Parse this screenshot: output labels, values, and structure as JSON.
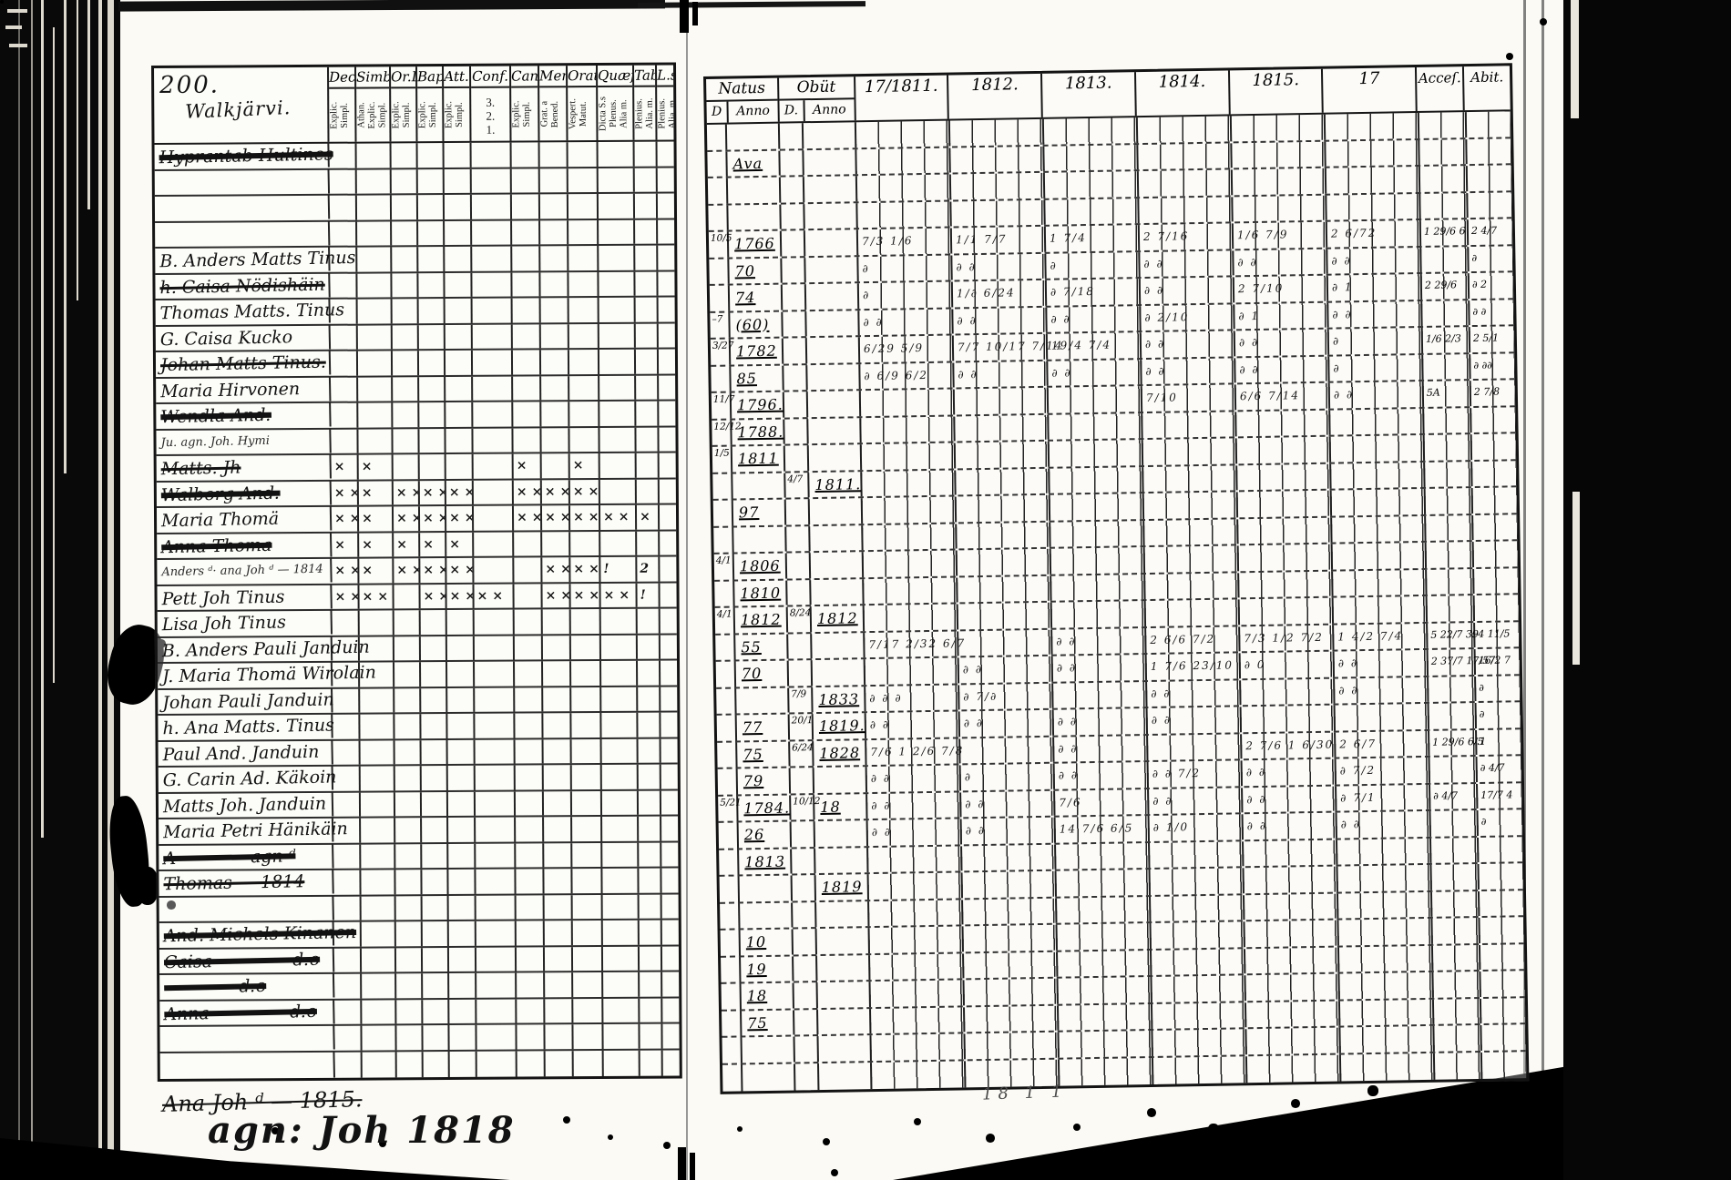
{
  "left": {
    "page_number": "200.",
    "parish": "Walkjärvi.",
    "columns": [
      {
        "label": "Dec.",
        "sub": "Explic.\nSimpl."
      },
      {
        "label": "Simb.",
        "sub": "Athan.\nExplic.\nSimpl."
      },
      {
        "label": "Or.D",
        "sub": "Explic.\nSimpl."
      },
      {
        "label": "Bap:",
        "sub": "Explic.\nSimpl."
      },
      {
        "label": "Att.",
        "sub": "Explic.\nSimpl."
      },
      {
        "label": "Conf.",
        "sub": "3.\n2.\n1."
      },
      {
        "label": "Can.D",
        "sub": "Explic.\nSimpl."
      },
      {
        "label": "Menſ.",
        "sub": "Grat. a\nBened."
      },
      {
        "label": "Orat",
        "sub": "Vespert.\nMatut."
      },
      {
        "label": "Quæſt",
        "sub": "Dicta S.s\nPlenus.\nAlia m."
      },
      {
        "label": "Taba",
        "sub": "Plenius.\nAlia. m."
      },
      {
        "label": "L.s",
        "sub": "Plenius.\nAlia. m."
      }
    ],
    "rows": [
      {
        "n": "Hyprantab Hultines",
        "st": 2
      },
      {
        "na": "Ava",
        "nst": 1
      },
      {},
      {},
      {
        "n": "B. Anders Matts Tinus",
        "nd": "10/5",
        "na": "1766",
        "y": [
          "7/3 1/6",
          "1/1 7/7",
          "1 7/4",
          "2 7/16",
          "1/6 7/9",
          "2 6/72"
        ],
        "ac": "1 29/6 6",
        "ab": "2 4/7"
      },
      {
        "n": "h. Caisa Nödishäin",
        "st": 1,
        "na": "70",
        "y": [
          "∂",
          "∂ ∂",
          "∂",
          "∂ ∂",
          "∂ ∂",
          "∂ ∂"
        ],
        "ab": "∂"
      },
      {
        "n": "Thomas Matts. Tinus",
        "na": "74",
        "y": [
          "∂",
          "1/∂ 6/24",
          "∂ 7/18",
          "∂ ∂",
          "2 7/10",
          "∂ 1"
        ],
        "ac": "2 29/6",
        "ab": "∂ 2"
      },
      {
        "n": "G. Caisa Kucko",
        "nd": "–7",
        "na": "(60)",
        "y": [
          "∂ ∂",
          "∂ ∂",
          "∂ ∂",
          "∂ 2/10",
          "∂ 1",
          "∂ ∂"
        ],
        "ab": "∂ ∂"
      },
      {
        "n": "Johan Matts Tinus.",
        "st": 1,
        "nd": "3/27",
        "na": "1782",
        "y": [
          "6/29 5/9",
          "7/7 10/17 7/14",
          "19/4 7/4",
          "∂ ∂",
          "∂ ∂",
          "∂"
        ],
        "ac": "1/6 2/3",
        "ab": "2 5/1"
      },
      {
        "n": "Maria Hirvonen",
        "na": "85",
        "y": [
          "∂ 6/9 6/2",
          "∂ ∂",
          "∂ ∂",
          "∂ ∂",
          "∂ ∂",
          "∂"
        ],
        "ab": "∂ ∂∂"
      },
      {
        "n": "Wendla And:",
        "st": 2,
        "nd": "11/7",
        "na": "1796.",
        "y": [
          "",
          "",
          "",
          "7/10",
          "6/6 7/14",
          "∂ ∂"
        ],
        "ac": "5A",
        "ab": "2 7/8"
      },
      {
        "n": "Ju. agn. Joh. Hymi",
        "sm": 1,
        "nd": "12/12",
        "na": "1788."
      },
      {
        "n": "Matts. Jh",
        "st": 1,
        "nd": "1/5",
        "na": "1811",
        "m": [
          "×",
          "×",
          "",
          "",
          "",
          "",
          "×",
          "",
          "×",
          "",
          "",
          ""
        ]
      },
      {
        "n": "Walborg And:",
        "st": 2,
        "od": "4/7",
        "oa": "1811.",
        "m": [
          "××",
          "×",
          "××",
          "××",
          "××",
          "",
          "××",
          "××",
          "××",
          "",
          "",
          ""
        ]
      },
      {
        "n": "Maria Thomä",
        "na": "97",
        "m": [
          "××",
          "×",
          "××",
          "××",
          "××",
          "",
          "××",
          "××",
          "×××",
          "××",
          "× ×",
          ""
        ]
      },
      {
        "n": "Anna Thoma",
        "st": 2,
        "m": [
          "×",
          "×",
          "×",
          "×",
          "×",
          "",
          "",
          "",
          "",
          "",
          "",
          ""
        ]
      },
      {
        "n": "Anders ᵈ· ana Joh ᵈ — 1814",
        "sm": 1,
        "nd": "4/1",
        "na": "1806",
        "m": [
          "××",
          "×",
          "××",
          "××",
          "××",
          "",
          "",
          "××",
          "×× ×",
          "!",
          "2 /0",
          ""
        ]
      },
      {
        "n": "Pett Joh Tinus",
        "na": "1810",
        "m": [
          "××",
          "××",
          "",
          "××",
          "××",
          "××",
          "",
          "××",
          "××",
          "××",
          "!",
          ""
        ]
      },
      {
        "n": "Lisa Joh Tinus",
        "nd": "4/1",
        "na": "1812",
        "od": "8/24",
        "oa": "1812"
      },
      {
        "n": "B. Anders Pauli Janduin",
        "na": "55",
        "y": [
          "7/17 2/32 6/7",
          "",
          "∂ ∂",
          "2 6/6 7/2",
          "7/3 1/2 7/2",
          "1 4/2 7/4"
        ],
        "ac": "5 22/7 39",
        "ab": "4 11/5"
      },
      {
        "n": "J. Maria Thomä Wirolain",
        "na": "70",
        "y": [
          "",
          "∂ ∂",
          "∂ ∂",
          "1 7/6 23/10",
          "∂ 0",
          "∂ ∂"
        ],
        "ac": "2 37/7 17/57",
        "ab": "16/2 7"
      },
      {
        "n": "Johan Pauli Janduin",
        "od": "7/9",
        "oa": "1833",
        "y": [
          "∂ ∂ ∂",
          "∂ 7/∂",
          "",
          "∂ ∂",
          "",
          "∂ ∂"
        ],
        "ab": "∂"
      },
      {
        "n": "h. Ana Matts. Tinus",
        "na": "77",
        "od": "20/1",
        "oa": "1819.",
        "y": [
          "∂ ∂",
          "∂ ∂",
          "∂ ∂",
          "∂ ∂",
          "",
          ""
        ],
        "ab": "∂"
      },
      {
        "n": "Paul And. Janduin",
        "na": "75",
        "od": "6/24",
        "oa": "1828",
        "y": [
          "7/6 1 2/6 7/8",
          "",
          "∂ ∂",
          "",
          "2 7/6 1 6/30",
          "2 6/7"
        ],
        "ac": "1 29/6 6/5",
        "ab": "1"
      },
      {
        "n": "G. Carin Ad. Käkoin",
        "na": "79",
        "y": [
          "∂ ∂",
          "∂",
          "∂ ∂",
          "∂ ∂ 7/2",
          "∂ ∂",
          "∂ 7/2"
        ],
        "ab": "∂ 4/7"
      },
      {
        "n": "Matts Joh. Janduin",
        "nd": "5/21",
        "na": "1784.",
        "od": "10/12",
        "oa": "18",
        "y": [
          "∂ ∂",
          "∂ ∂",
          "7/6",
          "∂ ∂",
          "∂ ∂",
          "∂ 7/1"
        ],
        "ac": "∂ 4/7",
        "ab": "17/7 4"
      },
      {
        "n": "Maria Petri Hänikäin",
        "na": "26",
        "y": [
          "∂ ∂",
          "∂ ∂",
          "14 7/6 6/5",
          "∂ 1/0",
          "∂ ∂",
          "∂ ∂"
        ],
        "ab": "∂"
      },
      {
        "n": "A———— agn ᵈ",
        "st": 2,
        "na": "1813"
      },
      {
        "n": "Thomas — 1814",
        "st": 1,
        "oa": "1819"
      },
      {},
      {
        "n": "And. Michels Kinanen",
        "st": 2,
        "na": "10"
      },
      {
        "n": "Caisa ———— d:o",
        "st": 2,
        "na": "19",
        "nst": 1
      },
      {
        "n": "———— d:o",
        "st": 2,
        "na": "18",
        "nst": 1
      },
      {
        "n": "Anna ———— d:o",
        "st": 2,
        "na": "75",
        "nst": 1
      },
      {},
      {}
    ],
    "footer_line1": "Ana Joh ᵈ — 1815.",
    "footer_line2": "agn: Joh 1818"
  },
  "right": {
    "natus": {
      "label": "Natus",
      "sub_d": "D",
      "sub_anno": "Anno"
    },
    "obiit": {
      "label": "Obüt",
      "sub_d": "D.",
      "sub_anno": "Anno"
    },
    "years": [
      "17/1811.",
      "1812.",
      "1813.",
      "1814.",
      "1815.",
      "17"
    ],
    "accel_label": "Acceſ.",
    "abit_label": "Abit.",
    "footer": "18 1 1"
  },
  "colors": {
    "paper": "#fbfaf5",
    "ink": "#131313",
    "background": "#050505"
  }
}
